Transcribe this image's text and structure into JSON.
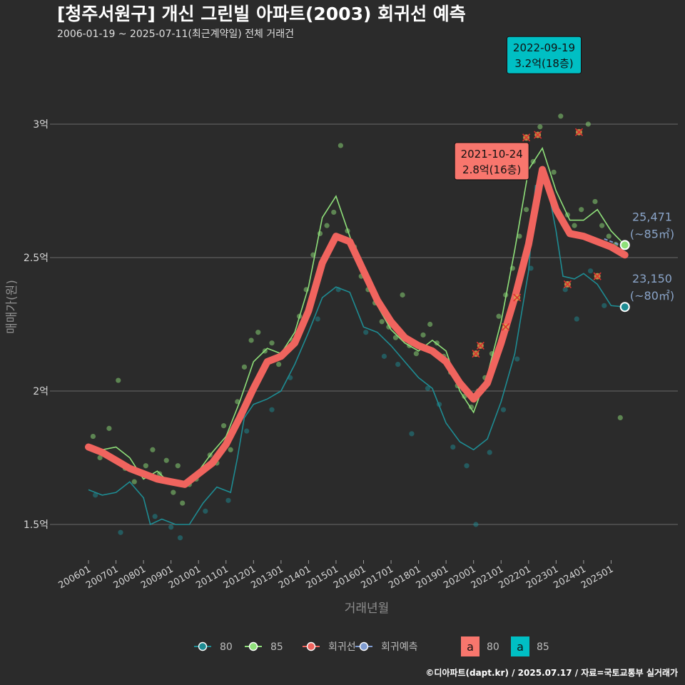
{
  "header": {
    "title": "[청주서원구] 개신 그린빌 아파트(2003) 회귀선 예측",
    "subtitle": "2006-01-19 ~ 2025-07-11(최근계약일) 전체 거래건"
  },
  "footer": {
    "credit": "©디아파트(dapt.kr) / 2025.07.17 / 자료=국토교통부 실거래가"
  },
  "colors": {
    "background": "#2b2b2b",
    "grid": "#6a6a6a",
    "s80": "#1e8c93",
    "s85": "#8fe07a",
    "regression": "#f0645e",
    "forecast": "#7f9cd1",
    "callout80": "#f8766d",
    "callout85": "#00bfc4"
  },
  "chart_data": {
    "type": "line",
    "title": "[청주서원구] 개신 그린빌 아파트(2003) 회귀선 예측",
    "subtitle": "2006-01-19 ~ 2025-07-11(최근계약일) 전체 거래건",
    "xlabel": "거래년월",
    "ylabel": "매매가(원)",
    "x_range": [
      "2006-01",
      "2025-07"
    ],
    "ylim": [
      130000000,
      340000000
    ],
    "y_ticks": [
      150000000,
      200000000,
      250000000,
      300000000
    ],
    "y_tick_labels": [
      "1.5억",
      "2억",
      "2.5억",
      "3억"
    ],
    "x_ticks": [
      "200601",
      "200701",
      "200801",
      "200901",
      "201001",
      "201101",
      "201201",
      "201301",
      "201401",
      "201501",
      "201601",
      "201701",
      "201801",
      "201901",
      "202001",
      "202101",
      "202201",
      "202301",
      "202401",
      "202501"
    ],
    "grid": true,
    "legend": {
      "position": "bottom",
      "series_items": [
        {
          "key": "80",
          "label": "80"
        },
        {
          "key": "85",
          "label": "85"
        },
        {
          "key": "reg",
          "label": "회귀선"
        },
        {
          "key": "fc",
          "label": "회귀예측"
        }
      ],
      "fill_items": [
        {
          "key": "80",
          "glyph": "a",
          "label": "80"
        },
        {
          "key": "85",
          "glyph": "a",
          "label": "85"
        }
      ]
    },
    "series": [
      {
        "name": "80",
        "unit": "원",
        "points": [
          [
            "2006-01",
            163000000
          ],
          [
            "2006-07",
            161000000
          ],
          [
            "2007-01",
            162000000
          ],
          [
            "2007-07",
            166000000
          ],
          [
            "2008-01",
            160000000
          ],
          [
            "2008-04",
            150000000
          ],
          [
            "2008-09",
            152000000
          ],
          [
            "2009-03",
            150000000
          ],
          [
            "2009-09",
            150000000
          ],
          [
            "2010-03",
            158000000
          ],
          [
            "2010-09",
            164000000
          ],
          [
            "2011-03",
            162000000
          ],
          [
            "2011-06",
            175000000
          ],
          [
            "2011-09",
            190000000
          ],
          [
            "2012-01",
            195000000
          ],
          [
            "2012-07",
            197000000
          ],
          [
            "2013-01",
            200000000
          ],
          [
            "2013-07",
            210000000
          ],
          [
            "2014-01",
            222000000
          ],
          [
            "2014-07",
            235000000
          ],
          [
            "2015-01",
            239000000
          ],
          [
            "2015-07",
            237000000
          ],
          [
            "2016-01",
            224000000
          ],
          [
            "2016-07",
            222000000
          ],
          [
            "2017-01",
            217000000
          ],
          [
            "2017-07",
            211000000
          ],
          [
            "2018-01",
            205000000
          ],
          [
            "2018-07",
            201000000
          ],
          [
            "2019-01",
            188000000
          ],
          [
            "2019-07",
            181000000
          ],
          [
            "2020-01",
            178000000
          ],
          [
            "2020-07",
            182000000
          ],
          [
            "2021-01",
            196000000
          ],
          [
            "2021-07",
            214000000
          ],
          [
            "2022-01",
            245000000
          ],
          [
            "2022-04",
            277000000
          ],
          [
            "2022-09",
            278000000
          ],
          [
            "2023-01",
            260000000
          ],
          [
            "2023-04",
            243000000
          ],
          [
            "2023-09",
            242000000
          ],
          [
            "2024-01",
            244000000
          ],
          [
            "2024-07",
            240000000
          ],
          [
            "2025-01",
            232000000
          ],
          [
            "2025-07",
            231500000
          ]
        ]
      },
      {
        "name": "85",
        "unit": "원",
        "points": [
          [
            "2006-01",
            179000000
          ],
          [
            "2006-07",
            178000000
          ],
          [
            "2007-01",
            179000000
          ],
          [
            "2007-07",
            175000000
          ],
          [
            "2008-01",
            167000000
          ],
          [
            "2008-07",
            170000000
          ],
          [
            "2009-01",
            165000000
          ],
          [
            "2009-07",
            165000000
          ],
          [
            "2010-01",
            170000000
          ],
          [
            "2010-07",
            177000000
          ],
          [
            "2011-01",
            183000000
          ],
          [
            "2011-07",
            196000000
          ],
          [
            "2012-01",
            211000000
          ],
          [
            "2012-07",
            216000000
          ],
          [
            "2013-01",
            214000000
          ],
          [
            "2013-07",
            222000000
          ],
          [
            "2014-01",
            239000000
          ],
          [
            "2014-07",
            265000000
          ],
          [
            "2015-01",
            273000000
          ],
          [
            "2015-07",
            258000000
          ],
          [
            "2016-01",
            243000000
          ],
          [
            "2016-07",
            232000000
          ],
          [
            "2017-01",
            223000000
          ],
          [
            "2017-07",
            218000000
          ],
          [
            "2018-01",
            215000000
          ],
          [
            "2018-07",
            219000000
          ],
          [
            "2019-01",
            215000000
          ],
          [
            "2019-07",
            200000000
          ],
          [
            "2020-01",
            192000000
          ],
          [
            "2020-07",
            206000000
          ],
          [
            "2021-01",
            226000000
          ],
          [
            "2021-07",
            253000000
          ],
          [
            "2022-01",
            283000000
          ],
          [
            "2022-07",
            291000000
          ],
          [
            "2023-01",
            275000000
          ],
          [
            "2023-07",
            264000000
          ],
          [
            "2024-01",
            264000000
          ],
          [
            "2024-07",
            268000000
          ],
          [
            "2025-01",
            260000000
          ],
          [
            "2025-07",
            254710000
          ]
        ]
      },
      {
        "name": "회귀선",
        "unit": "원",
        "points": [
          [
            "2006-01",
            179000000
          ],
          [
            "2006-07",
            177000000
          ],
          [
            "2007-01",
            174000000
          ],
          [
            "2007-07",
            171000000
          ],
          [
            "2008-01",
            169000000
          ],
          [
            "2008-07",
            167000000
          ],
          [
            "2009-01",
            166000000
          ],
          [
            "2009-07",
            165000000
          ],
          [
            "2010-01",
            169000000
          ],
          [
            "2010-07",
            173000000
          ],
          [
            "2011-01",
            180000000
          ],
          [
            "2011-07",
            190000000
          ],
          [
            "2012-01",
            201000000
          ],
          [
            "2012-07",
            211000000
          ],
          [
            "2013-01",
            213000000
          ],
          [
            "2013-07",
            218000000
          ],
          [
            "2014-01",
            230000000
          ],
          [
            "2014-07",
            248000000
          ],
          [
            "2015-01",
            258000000
          ],
          [
            "2015-07",
            256000000
          ],
          [
            "2016-01",
            245000000
          ],
          [
            "2016-07",
            234000000
          ],
          [
            "2017-01",
            226000000
          ],
          [
            "2017-07",
            220000000
          ],
          [
            "2018-01",
            217000000
          ],
          [
            "2018-07",
            215000000
          ],
          [
            "2019-01",
            211000000
          ],
          [
            "2019-07",
            203000000
          ],
          [
            "2020-01",
            197000000
          ],
          [
            "2020-07",
            203000000
          ],
          [
            "2021-01",
            218000000
          ],
          [
            "2021-07",
            235000000
          ],
          [
            "2022-01",
            255000000
          ],
          [
            "2022-07",
            283000000
          ],
          [
            "2023-01",
            268000000
          ],
          [
            "2023-07",
            259000000
          ],
          [
            "2024-01",
            258000000
          ],
          [
            "2024-07",
            256000000
          ],
          [
            "2025-01",
            254000000
          ],
          [
            "2025-07",
            251000000
          ]
        ]
      },
      {
        "name": "회귀예측",
        "unit": "원",
        "points": [
          [
            "2024-10",
            257000000
          ],
          [
            "2025-07",
            254000000
          ]
        ]
      }
    ],
    "transactions_85": [
      [
        "2006-03",
        183000000
      ],
      [
        "2006-06",
        175000000
      ],
      [
        "2006-10",
        186000000
      ],
      [
        "2007-02",
        204000000
      ],
      [
        "2007-05",
        171000000
      ],
      [
        "2007-09",
        166000000
      ],
      [
        "2008-02",
        172000000
      ],
      [
        "2008-05",
        178000000
      ],
      [
        "2008-08",
        169000000
      ],
      [
        "2008-11",
        174000000
      ],
      [
        "2009-02",
        162000000
      ],
      [
        "2009-04",
        172000000
      ],
      [
        "2009-06",
        158000000
      ],
      [
        "2009-09",
        165000000
      ],
      [
        "2009-12",
        167000000
      ],
      [
        "2010-03",
        170000000
      ],
      [
        "2010-06",
        176000000
      ],
      [
        "2010-09",
        173000000
      ],
      [
        "2010-12",
        187000000
      ],
      [
        "2011-03",
        178000000
      ],
      [
        "2011-06",
        196000000
      ],
      [
        "2011-09",
        209000000
      ],
      [
        "2011-12",
        219000000
      ],
      [
        "2012-03",
        222000000
      ],
      [
        "2012-06",
        215000000
      ],
      [
        "2012-09",
        218000000
      ],
      [
        "2012-12",
        210000000
      ],
      [
        "2013-03",
        215000000
      ],
      [
        "2013-06",
        219000000
      ],
      [
        "2013-09",
        228000000
      ],
      [
        "2013-12",
        238000000
      ],
      [
        "2014-03",
        251000000
      ],
      [
        "2014-06",
        259000000
      ],
      [
        "2014-09",
        262000000
      ],
      [
        "2014-12",
        267000000
      ],
      [
        "2015-03",
        292000000
      ],
      [
        "2015-06",
        260000000
      ],
      [
        "2015-09",
        254000000
      ],
      [
        "2015-12",
        243000000
      ],
      [
        "2016-03",
        238000000
      ],
      [
        "2016-06",
        233000000
      ],
      [
        "2016-09",
        226000000
      ],
      [
        "2016-12",
        224000000
      ],
      [
        "2017-03",
        220000000
      ],
      [
        "2017-06",
        236000000
      ],
      [
        "2017-09",
        217000000
      ],
      [
        "2017-12",
        214000000
      ],
      [
        "2018-03",
        221000000
      ],
      [
        "2018-06",
        225000000
      ],
      [
        "2018-09",
        218000000
      ],
      [
        "2018-12",
        213000000
      ],
      [
        "2019-03",
        207000000
      ],
      [
        "2019-06",
        202000000
      ],
      [
        "2019-09",
        198000000
      ],
      [
        "2019-12",
        194000000
      ],
      [
        "2020-03",
        200000000
      ],
      [
        "2020-06",
        205000000
      ],
      [
        "2020-09",
        214000000
      ],
      [
        "2020-12",
        228000000
      ],
      [
        "2021-03",
        236000000
      ],
      [
        "2021-06",
        246000000
      ],
      [
        "2021-09",
        258000000
      ],
      [
        "2021-12",
        268000000
      ],
      [
        "2022-03",
        286000000
      ],
      [
        "2022-06",
        299000000
      ],
      [
        "2022-09",
        320000000
      ],
      [
        "2022-12",
        282000000
      ],
      [
        "2023-03",
        303000000
      ],
      [
        "2023-06",
        266000000
      ],
      [
        "2023-09",
        262000000
      ],
      [
        "2023-12",
        268000000
      ],
      [
        "2024-03",
        300000000
      ],
      [
        "2024-06",
        271000000
      ],
      [
        "2024-09",
        262000000
      ],
      [
        "2024-12",
        258000000
      ],
      [
        "2025-03",
        255000000
      ],
      [
        "2025-05",
        190000000
      ]
    ],
    "transactions_80": [
      [
        "2006-04",
        161000000
      ],
      [
        "2007-03",
        147000000
      ],
      [
        "2008-06",
        153000000
      ],
      [
        "2009-01",
        149000000
      ],
      [
        "2009-05",
        145000000
      ],
      [
        "2010-04",
        155000000
      ],
      [
        "2011-02",
        159000000
      ],
      [
        "2011-10",
        185000000
      ],
      [
        "2012-09",
        193000000
      ],
      [
        "2013-05",
        205000000
      ],
      [
        "2014-05",
        227000000
      ],
      [
        "2015-02",
        238000000
      ],
      [
        "2016-02",
        222000000
      ],
      [
        "2016-10",
        213000000
      ],
      [
        "2017-04",
        210000000
      ],
      [
        "2017-10",
        184000000
      ],
      [
        "2018-05",
        201000000
      ],
      [
        "2018-10",
        195000000
      ],
      [
        "2019-04",
        179000000
      ],
      [
        "2019-10",
        172000000
      ],
      [
        "2020-02",
        150000000
      ],
      [
        "2020-08",
        177000000
      ],
      [
        "2021-02",
        193000000
      ],
      [
        "2021-08",
        212000000
      ],
      [
        "2022-02",
        246000000
      ],
      [
        "2022-11",
        272000000
      ],
      [
        "2023-05",
        238000000
      ],
      [
        "2023-10",
        227000000
      ],
      [
        "2024-04",
        245000000
      ],
      [
        "2024-10",
        232000000
      ]
    ],
    "excluded_points": [
      [
        "2020-02",
        214000000
      ],
      [
        "2020-04",
        217000000
      ],
      [
        "2021-03",
        224000000
      ],
      [
        "2021-08",
        235000000
      ],
      [
        "2021-12",
        295000000
      ],
      [
        "2022-05",
        296000000
      ],
      [
        "2023-06",
        240000000
      ],
      [
        "2023-11",
        297000000
      ],
      [
        "2024-07",
        243000000
      ]
    ],
    "annotations": [
      {
        "series": "80",
        "date": "2021-10-24",
        "value_label": "2.8억(16층)",
        "x": "2021-10",
        "y": 284000000
      },
      {
        "series": "85",
        "date": "2022-09-19",
        "value_label": "3.2억(18층)",
        "x": "2022-09",
        "y": 320000000
      }
    ],
    "end_labels": [
      {
        "series": "85",
        "value": "25,471",
        "area": "(~85㎡)",
        "x": "2025-07",
        "y": 254710000
      },
      {
        "series": "80",
        "value": "23,150",
        "area": "(~80㎡)",
        "x": "2025-07",
        "y": 231500000
      }
    ]
  }
}
